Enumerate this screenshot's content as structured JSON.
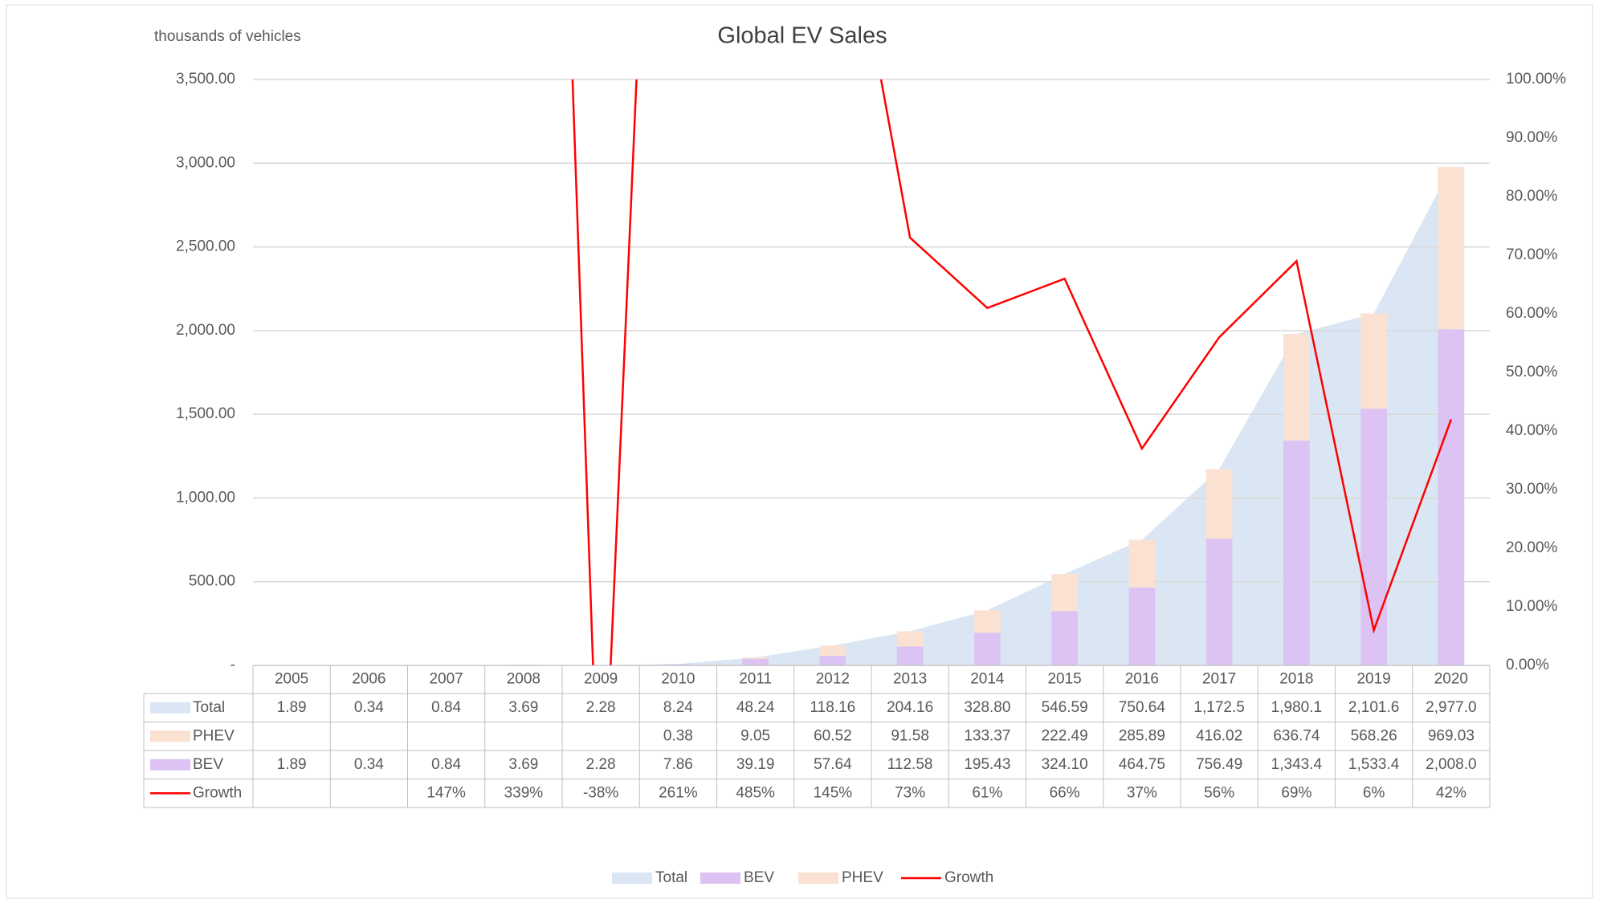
{
  "chart_data": {
    "type": "combo",
    "title": "Global EV Sales",
    "y_axis_label": "thousands of vehicles",
    "categories": [
      "2005",
      "2006",
      "2007",
      "2008",
      "2009",
      "2010",
      "2011",
      "2012",
      "2013",
      "2014",
      "2015",
      "2016",
      "2017",
      "2018",
      "2019",
      "2020"
    ],
    "series": [
      {
        "name": "Total",
        "kind": "area",
        "color": "#dae6f3",
        "values": [
          1.89,
          0.34,
          0.84,
          3.69,
          2.28,
          8.24,
          48.24,
          118.16,
          204.16,
          328.8,
          546.59,
          750.64,
          1172.5,
          1980.1,
          2101.6,
          2977.0
        ],
        "value_labels": [
          "1.89",
          "0.34",
          "0.84",
          "3.69",
          "2.28",
          "8.24",
          "48.24",
          "118.16",
          "204.16",
          "328.80",
          "546.59",
          "750.64",
          "1,172.5",
          "1,980.1",
          "2,101.6",
          "2,977.0"
        ]
      },
      {
        "name": "BEV",
        "kind": "bar",
        "color": "#dcc3f3",
        "values": [
          1.89,
          0.34,
          0.84,
          3.69,
          2.28,
          7.86,
          39.19,
          57.64,
          112.58,
          195.43,
          324.1,
          464.75,
          756.49,
          1343.4,
          1533.4,
          2008.0
        ],
        "value_labels": [
          "1.89",
          "0.34",
          "0.84",
          "3.69",
          "2.28",
          "7.86",
          "39.19",
          "57.64",
          "112.58",
          "195.43",
          "324.10",
          "464.75",
          "756.49",
          "1,343.4",
          "1,533.4",
          "2,008.0"
        ]
      },
      {
        "name": "PHEV",
        "kind": "bar",
        "color": "#fbe1d2",
        "values": [
          null,
          null,
          null,
          null,
          null,
          0.38,
          9.05,
          60.52,
          91.58,
          133.37,
          222.49,
          285.89,
          416.02,
          636.74,
          568.26,
          969.03
        ],
        "value_labels": [
          null,
          null,
          null,
          null,
          null,
          "0.38",
          "9.05",
          "60.52",
          "91.58",
          "133.37",
          "222.49",
          "285.89",
          "416.02",
          "636.74",
          "568.26",
          "969.03"
        ]
      },
      {
        "name": "Growth",
        "kind": "line",
        "axis": "y2",
        "color": "#ff0000",
        "values": [
          null,
          null,
          147,
          339,
          -38,
          261,
          485,
          145,
          73,
          61,
          66,
          37,
          56,
          69,
          6,
          42
        ],
        "value_labels": [
          null,
          null,
          "147%",
          "339%",
          "-38%",
          "261%",
          "485%",
          "145%",
          "73%",
          "61%",
          "66%",
          "37%",
          "56%",
          "69%",
          "6%",
          "42%"
        ]
      }
    ],
    "ylim": [
      0,
      3500
    ],
    "yticks": [
      {
        "value": 0,
        "label": "-"
      },
      {
        "value": 500,
        "label": "500.00"
      },
      {
        "value": 1000,
        "label": "1,000.00"
      },
      {
        "value": 1500,
        "label": "1,500.00"
      },
      {
        "value": 2000,
        "label": "2,000.00"
      },
      {
        "value": 2500,
        "label": "2,500.00"
      },
      {
        "value": 3000,
        "label": "3,000.00"
      },
      {
        "value": 3500,
        "label": "3,500.00"
      }
    ],
    "y2lim": [
      0,
      100
    ],
    "y2ticks": [
      {
        "value": 0,
        "label": "0.00%"
      },
      {
        "value": 10,
        "label": "10.00%"
      },
      {
        "value": 20,
        "label": "20.00%"
      },
      {
        "value": 30,
        "label": "30.00%"
      },
      {
        "value": 40,
        "label": "40.00%"
      },
      {
        "value": 50,
        "label": "50.00%"
      },
      {
        "value": 60,
        "label": "60.00%"
      },
      {
        "value": 70,
        "label": "70.00%"
      },
      {
        "value": 80,
        "label": "80.00%"
      },
      {
        "value": 90,
        "label": "90.00%"
      },
      {
        "value": 100,
        "label": "100.00%"
      }
    ],
    "grid": true,
    "legend": "bottom"
  }
}
